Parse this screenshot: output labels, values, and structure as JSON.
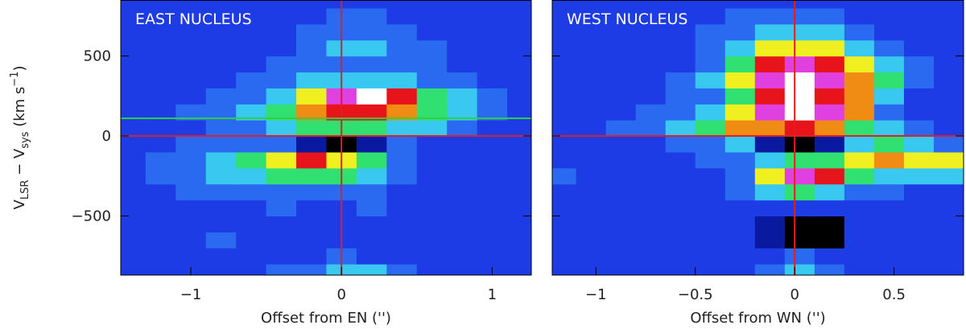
{
  "chart_data": [
    {
      "type": "heatmap",
      "title": "EAST NUCLEUS",
      "xlabel": "Offset from EN ('')",
      "ylabel": [
        "V",
        "LSR",
        " − V",
        "sys",
        "  (km s",
        "−1",
        ")"
      ],
      "xlim": [
        -1.465,
        1.26
      ],
      "ylim": [
        -870,
        850
      ],
      "xticks": [
        {
          "value": -1,
          "label": "−1"
        },
        0,
        1
      ],
      "yticks": [
        {
          "value": -500,
          "label": "−500"
        },
        0,
        500
      ],
      "xbins": [
        -1.5,
        -1.3,
        -1.1,
        -0.9,
        -0.7,
        -0.5,
        -0.3,
        -0.1,
        0.1,
        0.3,
        0.5,
        0.7,
        0.9,
        1.1,
        1.3
      ],
      "ybins": [
        -900,
        -800,
        -700,
        -600,
        -500,
        -400,
        -300,
        -200,
        -100,
        0,
        100,
        200,
        300,
        400,
        500,
        600,
        700,
        800,
        900
      ],
      "zlim": [
        0,
        10
      ],
      "colormap": [
        "#000000",
        "#0a1aa0",
        "#1e3ce6",
        "#2a6af0",
        "#38c8f0",
        "#30e070",
        "#f0f020",
        "#f08c14",
        "#e8141c",
        "#e040e0",
        "#ffffff"
      ],
      "z": [
        [
          2,
          2,
          2,
          2,
          2,
          3,
          3,
          4,
          4,
          3,
          2,
          2,
          2,
          2
        ],
        [
          2,
          2,
          2,
          2,
          2,
          2,
          2,
          3,
          2,
          2,
          2,
          2,
          2,
          2
        ],
        [
          2,
          2,
          2,
          3,
          2,
          2,
          2,
          2,
          2,
          2,
          2,
          2,
          2,
          2
        ],
        [
          2,
          2,
          2,
          2,
          2,
          2,
          2,
          2,
          2,
          2,
          2,
          2,
          2,
          2
        ],
        [
          2,
          2,
          2,
          2,
          2,
          3,
          2,
          2,
          3,
          2,
          2,
          2,
          2,
          2
        ],
        [
          2,
          2,
          3,
          3,
          3,
          3,
          3,
          3,
          3,
          2,
          2,
          2,
          2,
          2
        ],
        [
          2,
          3,
          3,
          4,
          4,
          5,
          5,
          5,
          4,
          3,
          2,
          2,
          2,
          2
        ],
        [
          2,
          3,
          3,
          4,
          5,
          6,
          8,
          6,
          5,
          3,
          2,
          2,
          2,
          2
        ],
        [
          2,
          2,
          3,
          3,
          3,
          3,
          1,
          0,
          1,
          3,
          2,
          2,
          2,
          2
        ],
        [
          2,
          2,
          2,
          3,
          3,
          4,
          5,
          5,
          5,
          4,
          4,
          3,
          2,
          2
        ],
        [
          2,
          2,
          3,
          3,
          4,
          5,
          7,
          8,
          8,
          7,
          5,
          4,
          3,
          2
        ],
        [
          2,
          2,
          2,
          3,
          3,
          4,
          6,
          9,
          10,
          8,
          5,
          4,
          3,
          2
        ],
        [
          2,
          2,
          2,
          2,
          3,
          3,
          4,
          4,
          4,
          4,
          3,
          3,
          2,
          2
        ],
        [
          2,
          2,
          2,
          2,
          2,
          3,
          3,
          3,
          3,
          3,
          3,
          2,
          2,
          2
        ],
        [
          2,
          2,
          2,
          2,
          2,
          2,
          3,
          4,
          4,
          3,
          3,
          2,
          2,
          2
        ],
        [
          2,
          2,
          2,
          2,
          2,
          2,
          3,
          3,
          3,
          3,
          2,
          2,
          2,
          2
        ],
        [
          2,
          2,
          2,
          2,
          2,
          2,
          2,
          3,
          3,
          2,
          2,
          2,
          2,
          2
        ],
        [
          2,
          2,
          2,
          2,
          2,
          2,
          2,
          2,
          2,
          2,
          2,
          2,
          2,
          2
        ]
      ],
      "reference_lines": [
        {
          "axis": "x",
          "value": 0,
          "color": "#e02020"
        },
        {
          "axis": "y",
          "value": 0,
          "color": "#e02020"
        },
        {
          "axis": "y",
          "value": 110,
          "color": "#30d040"
        }
      ]
    },
    {
      "type": "heatmap",
      "title": "WEST NUCLEUS",
      "xlabel": "Offset from WN ('')",
      "xlim": [
        -1.22,
        0.85
      ],
      "ylim": [
        -870,
        850
      ],
      "xticks": [
        {
          "value": -1,
          "label": "−1"
        },
        {
          "value": -0.5,
          "label": "−0.5"
        },
        0,
        0.5
      ],
      "yticks": [
        -500,
        0,
        500
      ],
      "xbins": [
        -1.25,
        -1.1,
        -0.95,
        -0.8,
        -0.65,
        -0.5,
        -0.35,
        -0.2,
        -0.05,
        0.1,
        0.25,
        0.4,
        0.55,
        0.7,
        0.85
      ],
      "ybins": [
        -900,
        -800,
        -700,
        -600,
        -500,
        -400,
        -300,
        -200,
        -100,
        0,
        100,
        200,
        300,
        400,
        500,
        600,
        700,
        800,
        900
      ],
      "zlim": [
        0,
        10
      ],
      "colormap": [
        "#000000",
        "#0a1aa0",
        "#1e3ce6",
        "#2a6af0",
        "#38c8f0",
        "#30e070",
        "#f0f020",
        "#f08c14",
        "#e8141c",
        "#e040e0",
        "#ffffff"
      ],
      "z": [
        [
          2,
          2,
          2,
          2,
          2,
          2,
          2,
          3,
          4,
          3,
          2,
          2,
          2,
          2
        ],
        [
          2,
          2,
          2,
          2,
          2,
          2,
          2,
          2,
          3,
          2,
          2,
          2,
          2,
          2
        ],
        [
          2,
          2,
          2,
          2,
          2,
          2,
          2,
          1,
          0,
          0,
          2,
          2,
          2,
          2
        ],
        [
          2,
          2,
          2,
          2,
          2,
          2,
          2,
          1,
          0,
          0,
          2,
          2,
          2,
          2
        ],
        [
          2,
          2,
          2,
          2,
          2,
          2,
          2,
          2,
          2,
          2,
          2,
          2,
          2,
          2
        ],
        [
          2,
          2,
          2,
          2,
          2,
          2,
          3,
          4,
          5,
          4,
          3,
          3,
          2,
          2
        ],
        [
          3,
          2,
          2,
          2,
          2,
          2,
          3,
          6,
          9,
          8,
          5,
          4,
          4,
          4
        ],
        [
          2,
          2,
          2,
          2,
          2,
          3,
          3,
          4,
          5,
          5,
          6,
          7,
          6,
          6
        ],
        [
          2,
          2,
          2,
          2,
          3,
          3,
          4,
          1,
          0,
          1,
          4,
          5,
          4,
          3
        ],
        [
          2,
          2,
          3,
          3,
          4,
          5,
          7,
          7,
          8,
          7,
          5,
          4,
          3,
          2
        ],
        [
          2,
          2,
          2,
          3,
          3,
          4,
          6,
          9,
          10,
          9,
          7,
          3,
          2,
          2
        ],
        [
          2,
          2,
          2,
          2,
          3,
          3,
          5,
          8,
          10,
          8,
          7,
          4,
          2,
          2
        ],
        [
          2,
          2,
          2,
          2,
          3,
          4,
          6,
          9,
          10,
          9,
          7,
          5,
          3,
          2
        ],
        [
          2,
          2,
          2,
          2,
          2,
          3,
          5,
          8,
          9,
          8,
          6,
          4,
          3,
          2
        ],
        [
          2,
          2,
          2,
          2,
          2,
          3,
          4,
          6,
          6,
          6,
          4,
          3,
          2,
          2
        ],
        [
          2,
          2,
          2,
          2,
          2,
          3,
          3,
          4,
          4,
          4,
          3,
          2,
          2,
          2
        ],
        [
          2,
          2,
          2,
          2,
          2,
          2,
          3,
          3,
          3,
          3,
          2,
          2,
          2,
          2
        ],
        [
          2,
          2,
          2,
          2,
          2,
          2,
          2,
          2,
          2,
          2,
          2,
          2,
          2,
          2
        ]
      ],
      "reference_lines": [
        {
          "axis": "x",
          "value": 0,
          "color": "#e02020"
        },
        {
          "axis": "y",
          "value": 0,
          "color": "#e02020"
        }
      ]
    }
  ]
}
